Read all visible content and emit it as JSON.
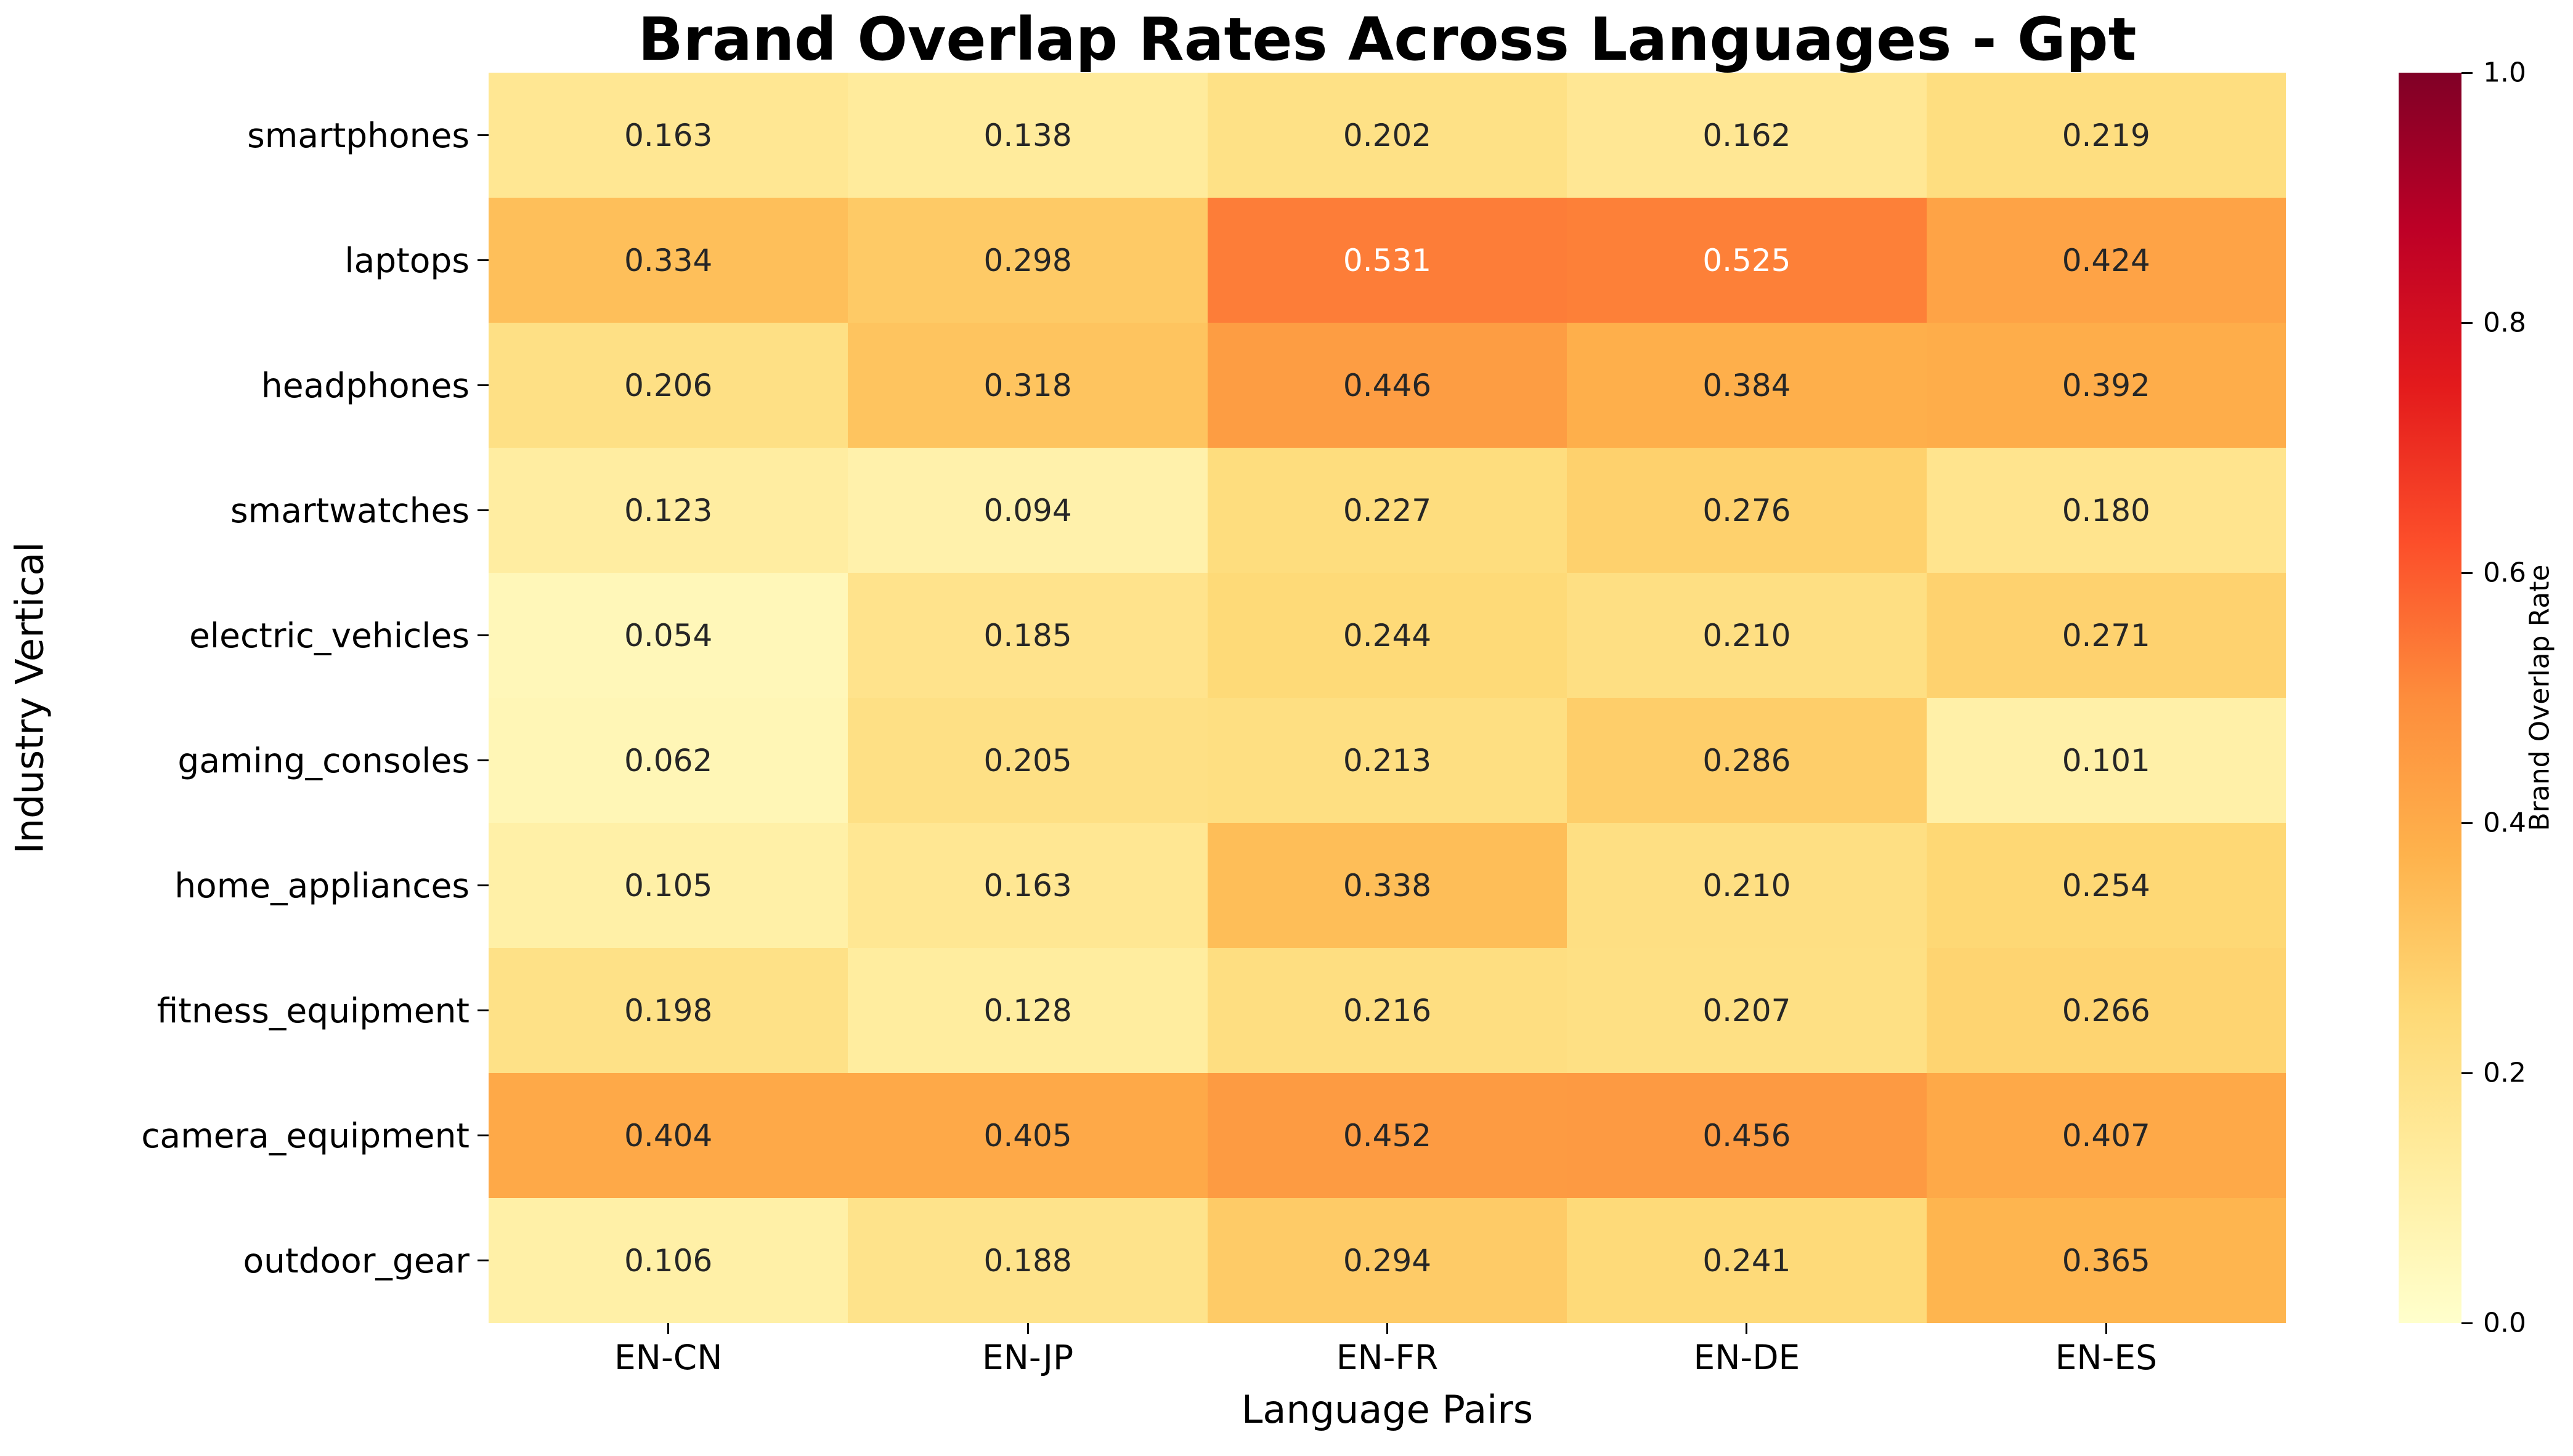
{
  "figure": {
    "background": "#ffffff"
  },
  "chart_data": {
    "type": "heatmap",
    "title": "Brand Overlap Rates Across Languages - Gpt",
    "xlabel": "Language Pairs",
    "ylabel": "Industry Vertical",
    "x_categories": [
      "EN-CN",
      "EN-JP",
      "EN-FR",
      "EN-DE",
      "EN-ES"
    ],
    "y_categories": [
      "smartphones",
      "laptops",
      "headphones",
      "smartwatches",
      "electric_vehicles",
      "gaming_consoles",
      "home_appliances",
      "fitness_equipment",
      "camera_equipment",
      "outdoor_gear"
    ],
    "values": [
      [
        0.163,
        0.138,
        0.202,
        0.162,
        0.219
      ],
      [
        0.334,
        0.298,
        0.531,
        0.525,
        0.424
      ],
      [
        0.206,
        0.318,
        0.446,
        0.384,
        0.392
      ],
      [
        0.123,
        0.094,
        0.227,
        0.276,
        0.18
      ],
      [
        0.054,
        0.185,
        0.244,
        0.21,
        0.271
      ],
      [
        0.062,
        0.205,
        0.213,
        0.286,
        0.101
      ],
      [
        0.105,
        0.163,
        0.338,
        0.21,
        0.254
      ],
      [
        0.198,
        0.128,
        0.216,
        0.207,
        0.266
      ],
      [
        0.404,
        0.405,
        0.452,
        0.456,
        0.407
      ],
      [
        0.106,
        0.188,
        0.294,
        0.241,
        0.365
      ]
    ],
    "value_decimals": 3,
    "vmin": 0.0,
    "vmax": 1.0,
    "grid": false,
    "annotation_colors": {
      "dark": "#262626",
      "light": "#ffffff"
    },
    "colormap": {
      "name": "YlOrRd",
      "stops": [
        {
          "t": 0.0,
          "hex": "#ffffcc"
        },
        {
          "t": 0.125,
          "hex": "#ffeda0"
        },
        {
          "t": 0.25,
          "hex": "#fed976"
        },
        {
          "t": 0.375,
          "hex": "#feb24c"
        },
        {
          "t": 0.5,
          "hex": "#fd8d3c"
        },
        {
          "t": 0.625,
          "hex": "#fc4e2a"
        },
        {
          "t": 0.75,
          "hex": "#e31a1c"
        },
        {
          "t": 0.875,
          "hex": "#bd0026"
        },
        {
          "t": 1.0,
          "hex": "#800026"
        }
      ]
    },
    "colorbar": {
      "label": "Brand Overlap Rate",
      "position": "right",
      "ticks": [
        {
          "value": 0.0,
          "label": "0.0"
        },
        {
          "value": 0.2,
          "label": "0.2"
        },
        {
          "value": 0.4,
          "label": "0.4"
        },
        {
          "value": 0.6,
          "label": "0.6"
        },
        {
          "value": 0.8,
          "label": "0.8"
        },
        {
          "value": 1.0,
          "label": "1.0"
        }
      ]
    }
  }
}
